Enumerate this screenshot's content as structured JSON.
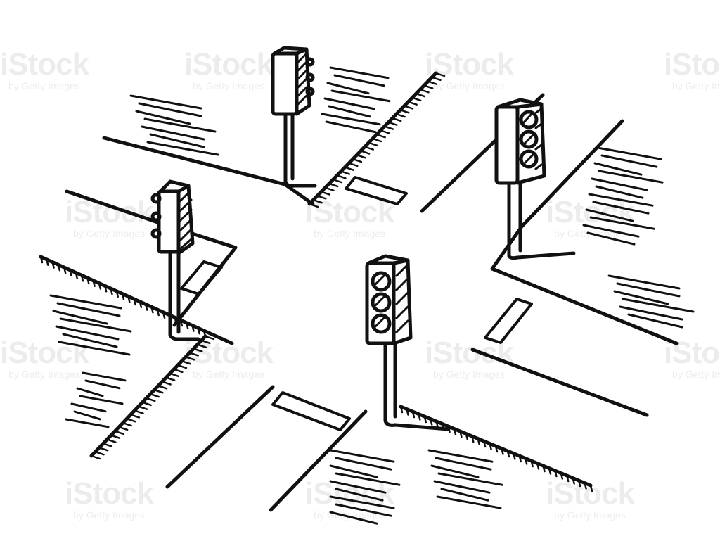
{
  "scene": {
    "subject": "traffic-light-intersection-sketch",
    "ink_color": "#111111",
    "background_color": "#ffffff",
    "traffic_light_count": 4
  },
  "watermark": {
    "brand": "iStock",
    "tagline": "by Getty Images"
  }
}
